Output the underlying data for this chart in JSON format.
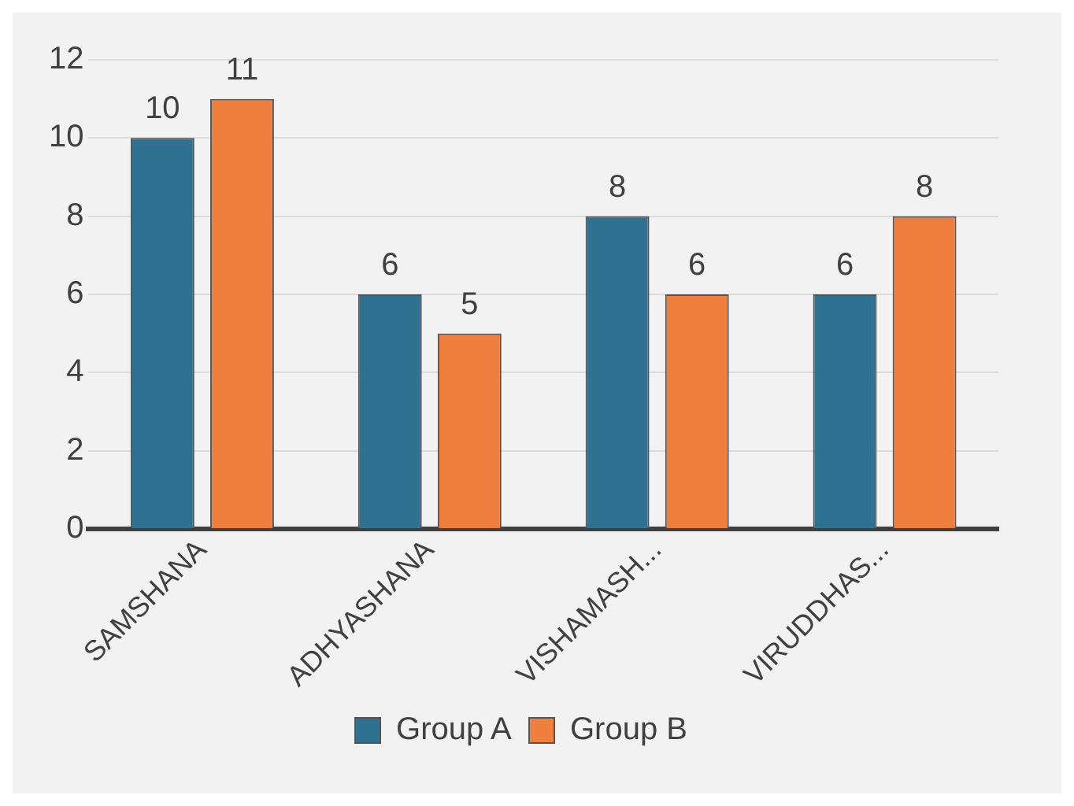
{
  "chart_data": {
    "type": "bar",
    "categories": [
      "SAMSHANA",
      "ADHYASHANA",
      "VISHAMASH...",
      "VIRUDDHAS..."
    ],
    "series": [
      {
        "name": "Group A",
        "color": "#2f7190",
        "values": [
          10,
          6,
          8,
          6
        ]
      },
      {
        "name": "Group B",
        "color": "#f07e3f",
        "values": [
          11,
          5,
          6,
          8
        ]
      }
    ],
    "ylim": [
      0,
      12
    ],
    "yticks": [
      0,
      2,
      4,
      6,
      8,
      10,
      12
    ],
    "grid": "y",
    "legend": "bottom",
    "data_labels": true
  }
}
